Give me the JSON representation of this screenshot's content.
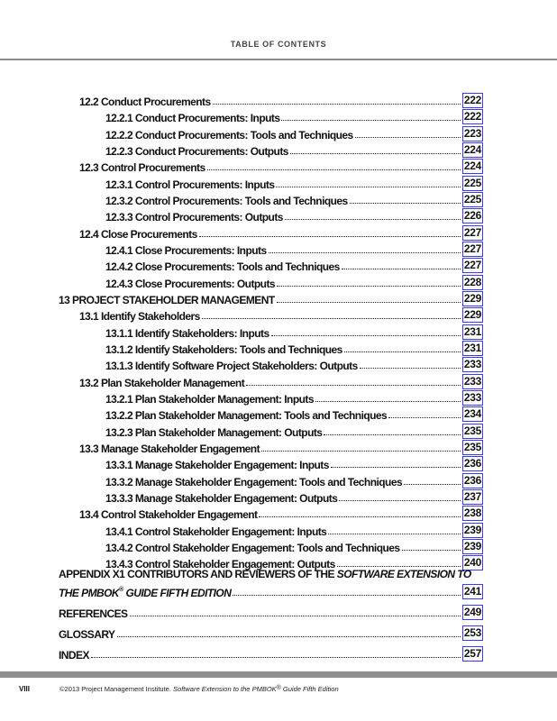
{
  "header": {
    "title": "TABLE OF CONTENTS"
  },
  "entries": [
    {
      "level": 2,
      "label": "12.2 Conduct Procurements",
      "page": "222"
    },
    {
      "level": 3,
      "label": "12.2.1 Conduct Procurements: Inputs",
      "page": "222"
    },
    {
      "level": 3,
      "label": "12.2.2 Conduct Procurements: Tools and Techniques",
      "page": "223"
    },
    {
      "level": 3,
      "label": "12.2.3 Conduct Procurements: Outputs",
      "page": "224"
    },
    {
      "level": 2,
      "label": "12.3 Control Procurements",
      "page": "224"
    },
    {
      "level": 3,
      "label": "12.3.1 Control Procurements: Inputs",
      "page": "225"
    },
    {
      "level": 3,
      "label": "12.3.2 Control Procurements: Tools and Techniques",
      "page": "225"
    },
    {
      "level": 3,
      "label": "12.3.3 Control Procurements: Outputs",
      "page": "226"
    },
    {
      "level": 2,
      "label": "12.4 Close Procurements",
      "page": "227"
    },
    {
      "level": 3,
      "label": "12.4.1 Close Procurements: Inputs",
      "page": "227"
    },
    {
      "level": 3,
      "label": "12.4.2 Close Procurements: Tools and Techniques",
      "page": "227"
    },
    {
      "level": 3,
      "label": "12.4.3 Close Procurements: Outputs",
      "page": "228"
    },
    {
      "level": 1,
      "label": "13 PROJECT STAKEHOLDER MANAGEMENT",
      "page": "229"
    },
    {
      "level": 2,
      "label": "13.1 Identify Stakeholders",
      "page": "229"
    },
    {
      "level": 3,
      "label": "13.1.1 Identify Stakeholders: Inputs",
      "page": "231"
    },
    {
      "level": 3,
      "label": "13.1.2 Identify Stakeholders: Tools and Techniques",
      "page": "231"
    },
    {
      "level": 3,
      "label": "13.1.3 Identify Software Project Stakeholders: Outputs",
      "page": "233"
    },
    {
      "level": 2,
      "label": "13.2 Plan Stakeholder Management",
      "page": "233"
    },
    {
      "level": 3,
      "label": "13.2.1 Plan Stakeholder Management: Inputs",
      "page": "233"
    },
    {
      "level": 3,
      "label": "13.2.2 Plan Stakeholder Management: Tools and Techniques",
      "page": "234"
    },
    {
      "level": 3,
      "label": "13.2.3 Plan Stakeholder Management: Outputs",
      "page": "235"
    },
    {
      "level": 2,
      "label": "13.3 Manage Stakeholder Engagement",
      "page": "235"
    },
    {
      "level": 3,
      "label": "13.3.1 Manage Stakeholder Engagement: Inputs",
      "page": "236"
    },
    {
      "level": 3,
      "label": "13.3.2 Manage Stakeholder Engagement: Tools and Techniques",
      "page": "236"
    },
    {
      "level": 3,
      "label": "13.3.3 Manage Stakeholder Engagement: Outputs",
      "page": "237"
    },
    {
      "level": 2,
      "label": "13.4 Control Stakeholder Engagement",
      "page": "238"
    },
    {
      "level": 3,
      "label": "13.4.1 Control Stakeholder Engagement: Inputs",
      "page": "239"
    },
    {
      "level": 3,
      "label": "13.4.2 Control Stakeholder Engagement: Tools and Techniques",
      "page": "239"
    },
    {
      "level": 3,
      "label": "13.4.3 Control Stakeholder Engagement: Outputs",
      "page": "240"
    }
  ],
  "appendix": {
    "line1_prefix": "APPENDIX X1 CONTRIBUTORS AND REVIEWERS OF THE ",
    "line1_italic": "SOFTWARE EXTENSION TO",
    "line2_italic_a": "THE PMBOK",
    "reg": "®",
    "line2_italic_b": " GUIDE FIFTH EDITION",
    "page": "241"
  },
  "back_matter": [
    {
      "label": "REFERENCES",
      "page": "249"
    },
    {
      "label": "GLOSSARY",
      "page": "253"
    },
    {
      "label": "INDEX",
      "page": "257"
    }
  ],
  "footer": {
    "folio": "VIII",
    "copyright": "©2013 Project Management Institute. ",
    "title_a": "Software Extension to the PMBOK",
    "reg": "®",
    "title_b": " Guide Fifth Edition"
  },
  "colors": {
    "link_box": "#3a3aff",
    "rule": "#8a8a8a"
  }
}
